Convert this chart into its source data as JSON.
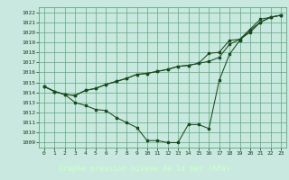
{
  "title": "Graphe pression niveau de la mer (hPa)",
  "bg_plot": "#c8e8e0",
  "bg_label": "#2d6e2d",
  "grid_color": "#5aaa7a",
  "line_color": "#1a4a1a",
  "marker_color": "#1a4a1a",
  "label_text_color": "#c8ffc8",
  "tick_color": "#1a3a1a",
  "xlim": [
    -0.5,
    23.5
  ],
  "ylim": [
    1008.5,
    1022.5
  ],
  "yticks": [
    1009,
    1010,
    1011,
    1012,
    1013,
    1014,
    1015,
    1016,
    1017,
    1018,
    1019,
    1020,
    1021,
    1022
  ],
  "xticks": [
    0,
    1,
    2,
    3,
    4,
    5,
    6,
    7,
    8,
    9,
    10,
    11,
    12,
    13,
    14,
    15,
    16,
    17,
    18,
    19,
    20,
    21,
    22,
    23
  ],
  "line1_x": [
    0,
    1,
    2,
    3,
    4,
    5,
    6,
    7,
    8,
    9,
    10,
    11,
    12,
    13,
    14,
    15,
    16,
    17,
    18,
    19,
    20,
    21,
    22,
    23
  ],
  "line1_y": [
    1014.6,
    1014.1,
    1013.8,
    1013.0,
    1012.7,
    1012.3,
    1012.2,
    1011.5,
    1011.0,
    1010.5,
    1009.2,
    1009.2,
    1009.0,
    1009.0,
    1010.8,
    1010.8,
    1010.4,
    1015.2,
    1017.8,
    1019.2,
    1020.2,
    1021.0,
    1021.5,
    1021.7
  ],
  "line2_x": [
    0,
    1,
    2,
    3,
    4,
    5,
    6,
    7,
    8,
    9,
    10,
    11,
    12,
    13,
    14,
    15,
    16,
    17,
    18,
    19,
    20,
    21,
    22,
    23
  ],
  "line2_y": [
    1014.6,
    1014.1,
    1013.8,
    1013.7,
    1014.2,
    1014.4,
    1014.8,
    1015.1,
    1015.4,
    1015.8,
    1015.9,
    1016.1,
    1016.3,
    1016.6,
    1016.7,
    1016.9,
    1017.1,
    1017.5,
    1018.8,
    1019.3,
    1020.0,
    1021.0,
    1021.5,
    1021.7
  ],
  "line3_x": [
    0,
    1,
    2,
    3,
    4,
    5,
    6,
    7,
    8,
    9,
    10,
    11,
    12,
    13,
    14,
    15,
    16,
    17,
    18,
    19,
    20,
    21,
    22,
    23
  ],
  "line3_y": [
    1014.6,
    1014.1,
    1013.8,
    1013.7,
    1014.2,
    1014.4,
    1014.8,
    1015.1,
    1015.4,
    1015.8,
    1015.9,
    1016.1,
    1016.3,
    1016.6,
    1016.7,
    1016.9,
    1017.9,
    1018.0,
    1019.2,
    1019.3,
    1020.3,
    1021.3,
    1021.5,
    1021.7
  ]
}
